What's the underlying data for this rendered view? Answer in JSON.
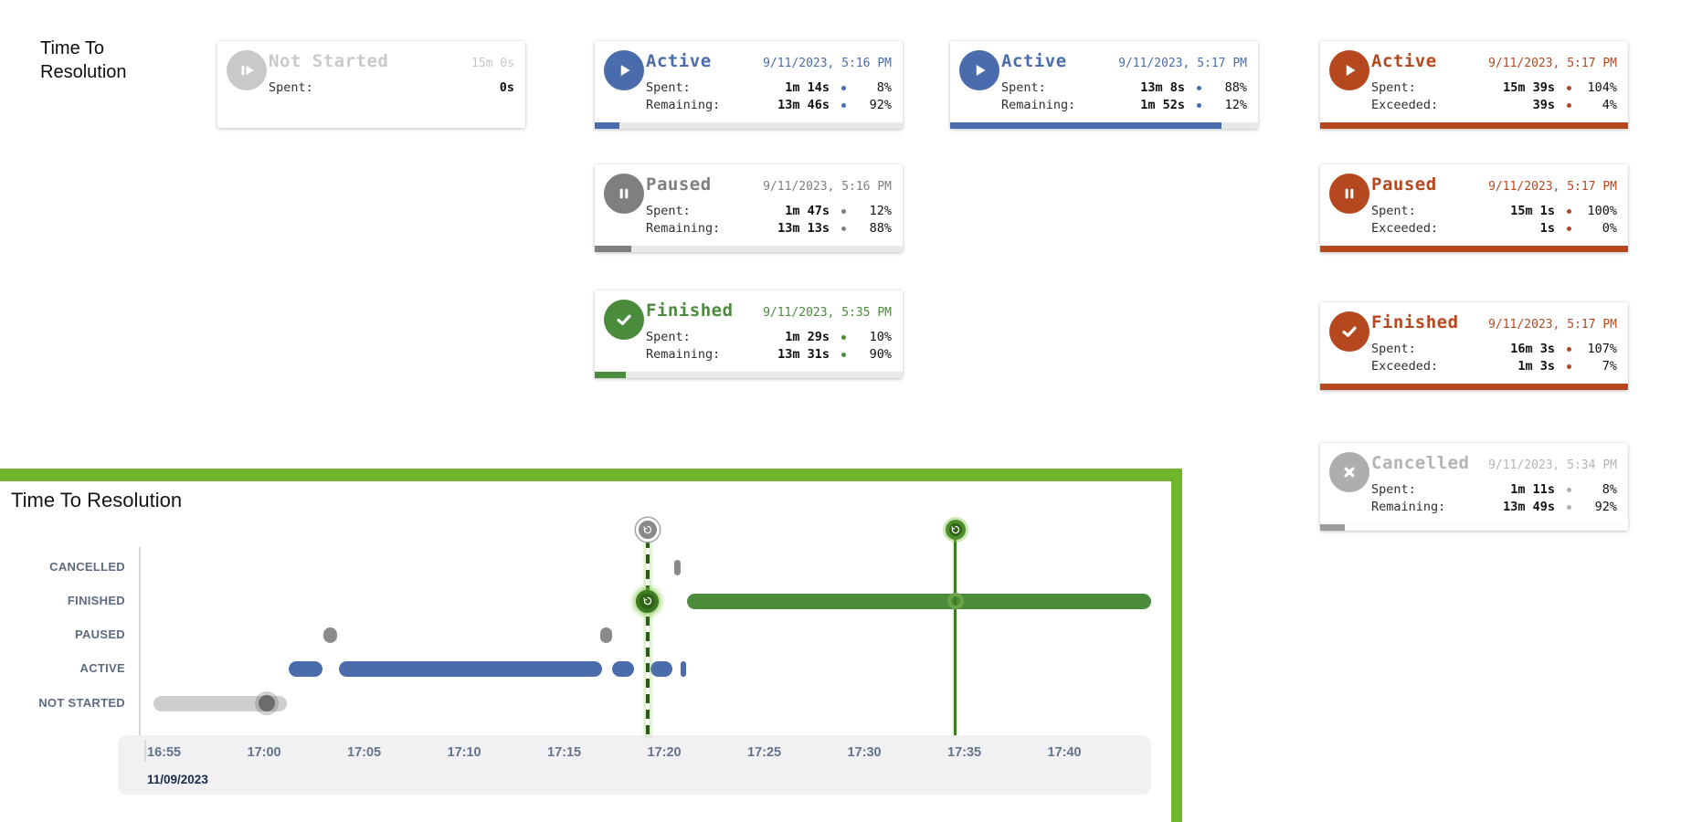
{
  "heading": "Time To Resolution",
  "cards": [
    {
      "status": "Not Started",
      "icon": "play-from-start-icon",
      "meta": "15m 0s",
      "progress_pct": 0,
      "rows": [
        {
          "label": "Spent:",
          "value": "0s",
          "pct": null
        }
      ]
    },
    {
      "status": "Active",
      "icon": "play-icon",
      "meta": "9/11/2023, 5:16 PM",
      "progress_pct": 8,
      "rows": [
        {
          "label": "Spent:",
          "value": "1m 14s",
          "pct": "8%"
        },
        {
          "label": "Remaining:",
          "value": "13m 46s",
          "pct": "92%"
        }
      ]
    },
    {
      "status": "Active",
      "icon": "play-icon",
      "meta": "9/11/2023, 5:17 PM",
      "progress_pct": 88,
      "rows": [
        {
          "label": "Spent:",
          "value": "13m 8s",
          "pct": "88%"
        },
        {
          "label": "Remaining:",
          "value": "1m 52s",
          "pct": "12%"
        }
      ]
    },
    {
      "status": "Active",
      "icon": "play-icon",
      "meta": "9/11/2023, 5:17 PM",
      "progress_pct": 100,
      "rows": [
        {
          "label": "Spent:",
          "value": "15m 39s",
          "pct": "104%"
        },
        {
          "label": "Exceeded:",
          "value": "39s",
          "pct": "4%"
        }
      ]
    },
    {
      "status": "Paused",
      "icon": "pause-icon",
      "meta": "9/11/2023, 5:16 PM",
      "progress_pct": 12,
      "rows": [
        {
          "label": "Spent:",
          "value": "1m 47s",
          "pct": "12%"
        },
        {
          "label": "Remaining:",
          "value": "13m 13s",
          "pct": "88%"
        }
      ]
    },
    {
      "status": "Paused",
      "icon": "pause-icon",
      "meta": "9/11/2023, 5:17 PM",
      "progress_pct": 100,
      "rows": [
        {
          "label": "Spent:",
          "value": "15m 1s",
          "pct": "100%"
        },
        {
          "label": "Exceeded:",
          "value": "1s",
          "pct": "0%"
        }
      ]
    },
    {
      "status": "Finished",
      "icon": "check-icon",
      "meta": "9/11/2023, 5:35 PM",
      "progress_pct": 10,
      "rows": [
        {
          "label": "Spent:",
          "value": "1m 29s",
          "pct": "10%"
        },
        {
          "label": "Remaining:",
          "value": "13m 31s",
          "pct": "90%"
        }
      ]
    },
    {
      "status": "Finished",
      "icon": "check-icon",
      "meta": "9/11/2023, 5:17 PM",
      "progress_pct": 100,
      "rows": [
        {
          "label": "Spent:",
          "value": "16m 3s",
          "pct": "107%"
        },
        {
          "label": "Exceeded:",
          "value": "1m 3s",
          "pct": "7%"
        }
      ]
    },
    {
      "status": "Cancelled",
      "icon": "x-icon",
      "meta": "9/11/2023, 5:34 PM",
      "progress_pct": 8,
      "rows": [
        {
          "label": "Spent:",
          "value": "1m 11s",
          "pct": "8%"
        },
        {
          "label": "Remaining:",
          "value": "13m 49s",
          "pct": "92%"
        }
      ]
    }
  ],
  "chart": {
    "title": "Time To Resolution",
    "date_label": "11/09/2023"
  },
  "chart_data": {
    "type": "timeline",
    "title": "Time To Resolution",
    "date": "11/09/2023",
    "rows": [
      "CANCELLED",
      "FINISHED",
      "PAUSED",
      "ACTIVE",
      "NOT STARTED"
    ],
    "x_ticks": [
      "16:55",
      "17:00",
      "17:05",
      "17:10",
      "17:15",
      "17:20",
      "17:25",
      "17:30",
      "17:35",
      "17:40"
    ],
    "axis_start": "16:55",
    "segments": [
      {
        "row": "NOT STARTED",
        "start": "16:55:20",
        "end": "17:02:00",
        "color": "#cecece"
      },
      {
        "row": "ACTIVE",
        "start": "17:02:05",
        "end": "17:03:45",
        "color": "#4b6cac"
      },
      {
        "row": "PAUSED",
        "start": "17:03:50",
        "end": "17:04:30",
        "color": "#8a8a8a"
      },
      {
        "row": "ACTIVE",
        "start": "17:04:35",
        "end": "17:17:45",
        "color": "#4b6cac"
      },
      {
        "row": "PAUSED",
        "start": "17:17:40",
        "end": "17:18:15",
        "color": "#8a8a8a"
      },
      {
        "row": "ACTIVE",
        "start": "17:18:15",
        "end": "17:19:20",
        "color": "#4b6cac"
      },
      {
        "row": "ACTIVE",
        "start": "17:20:10",
        "end": "17:21:15",
        "color": "#4b6cac"
      },
      {
        "row": "CANCELLED",
        "start": "17:21:20",
        "end": "17:21:40",
        "color": "#8a8a8a"
      },
      {
        "row": "ACTIVE",
        "start": "17:21:40",
        "end": "17:21:55",
        "color": "#4b6cac"
      },
      {
        "row": "FINISHED",
        "start": "17:22:00",
        "end": "17:45:10",
        "color": "#4a8b3c"
      }
    ],
    "markers": [
      {
        "type": "dot-gray",
        "row": "NOT STARTED",
        "time": "17:01:00",
        "name": "not-started-event-marker"
      },
      {
        "type": "badge-gray",
        "row": "TOP",
        "time": "17:20:00",
        "name": "history-marker-gray"
      },
      {
        "type": "badge-green",
        "row": "FINISHED",
        "time": "17:20:00",
        "name": "history-marker-green"
      },
      {
        "type": "dot-green",
        "row": "TOP",
        "time": "17:35:25",
        "name": "finish-marker-top"
      },
      {
        "type": "ring",
        "row": "FINISHED",
        "time": "17:35:25",
        "name": "finish-marker-ring"
      }
    ],
    "lines": [
      {
        "time": "17:20:00",
        "style": "dashed",
        "color": "#2c5a1e"
      },
      {
        "time": "17:35:25",
        "style": "solid",
        "color": "#3e7d22"
      }
    ]
  },
  "colors": {
    "active_blue": "#4b6cac",
    "paused_gray": "#7f7f7f",
    "finished_green": "#4a8b3c",
    "overdue_red": "#b5481f",
    "not_started_gray": "#c9c9c9",
    "cancelled_gray": "#b3b3b3",
    "panel_green": "#6fb52d",
    "axis_label": "#5d6b82",
    "tick_label": "#64748c",
    "date_navy": "#1c2b4a"
  }
}
